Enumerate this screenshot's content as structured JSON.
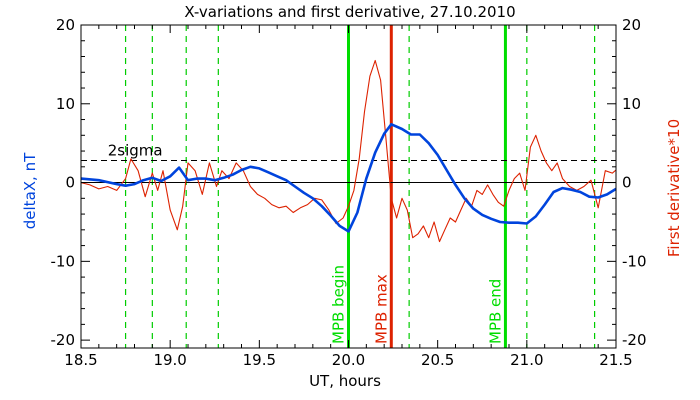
{
  "chart_data": {
    "type": "line",
    "title": "X-variations and first derivative, 27.10.2010",
    "xlabel": "UT, hours",
    "ylabel_left": "deltaX, nT",
    "ylabel_right": "First derivative*10",
    "xlim": [
      18.5,
      21.5
    ],
    "ylim": [
      -21,
      20
    ],
    "x_ticks": [
      {
        "value": 18.5,
        "label": "18.5"
      },
      {
        "value": 19.0,
        "label": "19.0"
      },
      {
        "value": 19.5,
        "label": "19.5"
      },
      {
        "value": 20.0,
        "label": "20.0"
      },
      {
        "value": 20.5,
        "label": "20.5"
      },
      {
        "value": 21.0,
        "label": "21.0"
      },
      {
        "value": 21.5,
        "label": "21.5"
      }
    ],
    "y_ticks": [
      {
        "value": 20,
        "label": "20"
      },
      {
        "value": 10,
        "label": "10"
      },
      {
        "value": 0,
        "label": "0"
      },
      {
        "value": -10,
        "label": "-10"
      },
      {
        "value": -20,
        "label": "-20"
      }
    ],
    "threshold": {
      "label": "2sigma",
      "value": 2.8,
      "color": "#000000"
    },
    "zero_line": 0,
    "vertical_lines": [
      {
        "x": 18.75,
        "label": "",
        "color": "#00cc00",
        "style": "dashed"
      },
      {
        "x": 18.9,
        "label": "",
        "color": "#00cc00",
        "style": "dashed"
      },
      {
        "x": 19.09,
        "label": "",
        "color": "#00cc00",
        "style": "dashed"
      },
      {
        "x": 19.27,
        "label": "",
        "color": "#00cc00",
        "style": "dashed"
      },
      {
        "x": 20.34,
        "label": "",
        "color": "#00cc00",
        "style": "dashed"
      },
      {
        "x": 21.0,
        "label": "",
        "color": "#00cc00",
        "style": "dashed"
      },
      {
        "x": 21.38,
        "label": "",
        "color": "#00cc00",
        "style": "dashed"
      },
      {
        "x": 20.0,
        "label": "MPB begin",
        "color": "#00dd00",
        "style": "solid"
      },
      {
        "x": 20.24,
        "label": "MPB max",
        "color": "#dd2200",
        "style": "solid"
      },
      {
        "x": 20.88,
        "label": "MPB end",
        "color": "#00dd00",
        "style": "solid"
      }
    ],
    "series": [
      {
        "name": "",
        "axis": "left",
        "color": "#0044dd",
        "x": [
          18.5,
          18.6,
          18.7,
          18.75,
          18.8,
          18.85,
          18.9,
          18.95,
          19.0,
          19.05,
          19.1,
          19.15,
          19.2,
          19.25,
          19.3,
          19.35,
          19.4,
          19.45,
          19.5,
          19.55,
          19.6,
          19.65,
          19.7,
          19.75,
          19.8,
          19.85,
          19.9,
          19.95,
          20.0,
          20.05,
          20.1,
          20.15,
          20.2,
          20.24,
          20.3,
          20.35,
          20.4,
          20.45,
          20.5,
          20.55,
          20.6,
          20.65,
          20.7,
          20.75,
          20.8,
          20.85,
          20.9,
          20.95,
          21.0,
          21.05,
          21.1,
          21.15,
          21.2,
          21.25,
          21.3,
          21.35,
          21.4,
          21.45,
          21.5
        ],
        "values": [
          0.5,
          0.3,
          -0.2,
          -0.4,
          -0.2,
          0.3,
          0.6,
          0.2,
          0.8,
          1.9,
          0.3,
          0.5,
          0.5,
          0.3,
          0.6,
          1.0,
          1.6,
          2.0,
          1.8,
          1.3,
          0.8,
          0.3,
          -0.5,
          -1.3,
          -2.0,
          -3.0,
          -4.2,
          -5.5,
          -6.2,
          -3.8,
          0.5,
          3.8,
          6.2,
          7.4,
          6.8,
          6.1,
          6.1,
          5.0,
          3.5,
          1.6,
          -0.3,
          -2.0,
          -3.3,
          -4.1,
          -4.6,
          -5.0,
          -5.1,
          -5.1,
          -5.2,
          -4.3,
          -2.8,
          -1.2,
          -0.7,
          -0.9,
          -1.2,
          -1.8,
          -1.9,
          -1.5,
          -0.8
        ]
      },
      {
        "name": "",
        "axis": "right",
        "color": "#dd2200",
        "x": [
          18.5,
          18.55,
          18.6,
          18.65,
          18.7,
          18.75,
          18.78,
          18.82,
          18.86,
          18.9,
          18.93,
          18.96,
          19.0,
          19.04,
          19.07,
          19.1,
          19.14,
          19.18,
          19.22,
          19.26,
          19.29,
          19.33,
          19.37,
          19.41,
          19.45,
          19.49,
          19.53,
          19.57,
          19.61,
          19.65,
          19.69,
          19.73,
          19.77,
          19.81,
          19.85,
          19.89,
          19.93,
          19.97,
          20.0,
          20.03,
          20.06,
          20.09,
          20.12,
          20.15,
          20.18,
          20.21,
          20.24,
          20.27,
          20.3,
          20.33,
          20.36,
          20.39,
          20.42,
          20.45,
          20.48,
          20.51,
          20.54,
          20.57,
          20.6,
          20.63,
          20.66,
          20.69,
          20.72,
          20.75,
          20.78,
          20.81,
          20.84,
          20.87,
          20.9,
          20.93,
          20.96,
          20.99,
          21.02,
          21.05,
          21.08,
          21.11,
          21.14,
          21.17,
          21.2,
          21.24,
          21.28,
          21.32,
          21.36,
          21.4,
          21.44,
          21.48,
          21.5
        ],
        "values": [
          0.0,
          -0.3,
          -0.8,
          -0.5,
          -1.0,
          0.5,
          3.0,
          1.5,
          -1.8,
          1.2,
          -1.0,
          1.5,
          -3.5,
          -6.0,
          -3.0,
          2.5,
          1.5,
          -1.5,
          2.5,
          -0.5,
          1.5,
          0.5,
          2.5,
          1.5,
          -0.5,
          -1.5,
          -2.0,
          -2.8,
          -3.2,
          -3.0,
          -3.8,
          -3.2,
          -2.8,
          -2.0,
          -2.2,
          -3.5,
          -5.2,
          -4.5,
          -3.0,
          -1.0,
          3.0,
          9.0,
          13.5,
          15.5,
          13.0,
          5.5,
          -2.0,
          -4.5,
          -2.0,
          -3.5,
          -7.0,
          -6.5,
          -5.5,
          -7.0,
          -5.0,
          -7.5,
          -6.0,
          -4.5,
          -5.0,
          -3.5,
          -2.0,
          -3.0,
          -1.0,
          -1.5,
          -0.3,
          -1.5,
          -2.5,
          -3.0,
          -1.0,
          0.5,
          1.2,
          -1.0,
          4.5,
          6.0,
          4.0,
          2.5,
          1.5,
          2.5,
          0.5,
          -0.5,
          -1.0,
          -0.5,
          0.3,
          -3.2,
          1.5,
          1.2,
          1.6
        ]
      }
    ],
    "grid": false,
    "legend": "none"
  }
}
